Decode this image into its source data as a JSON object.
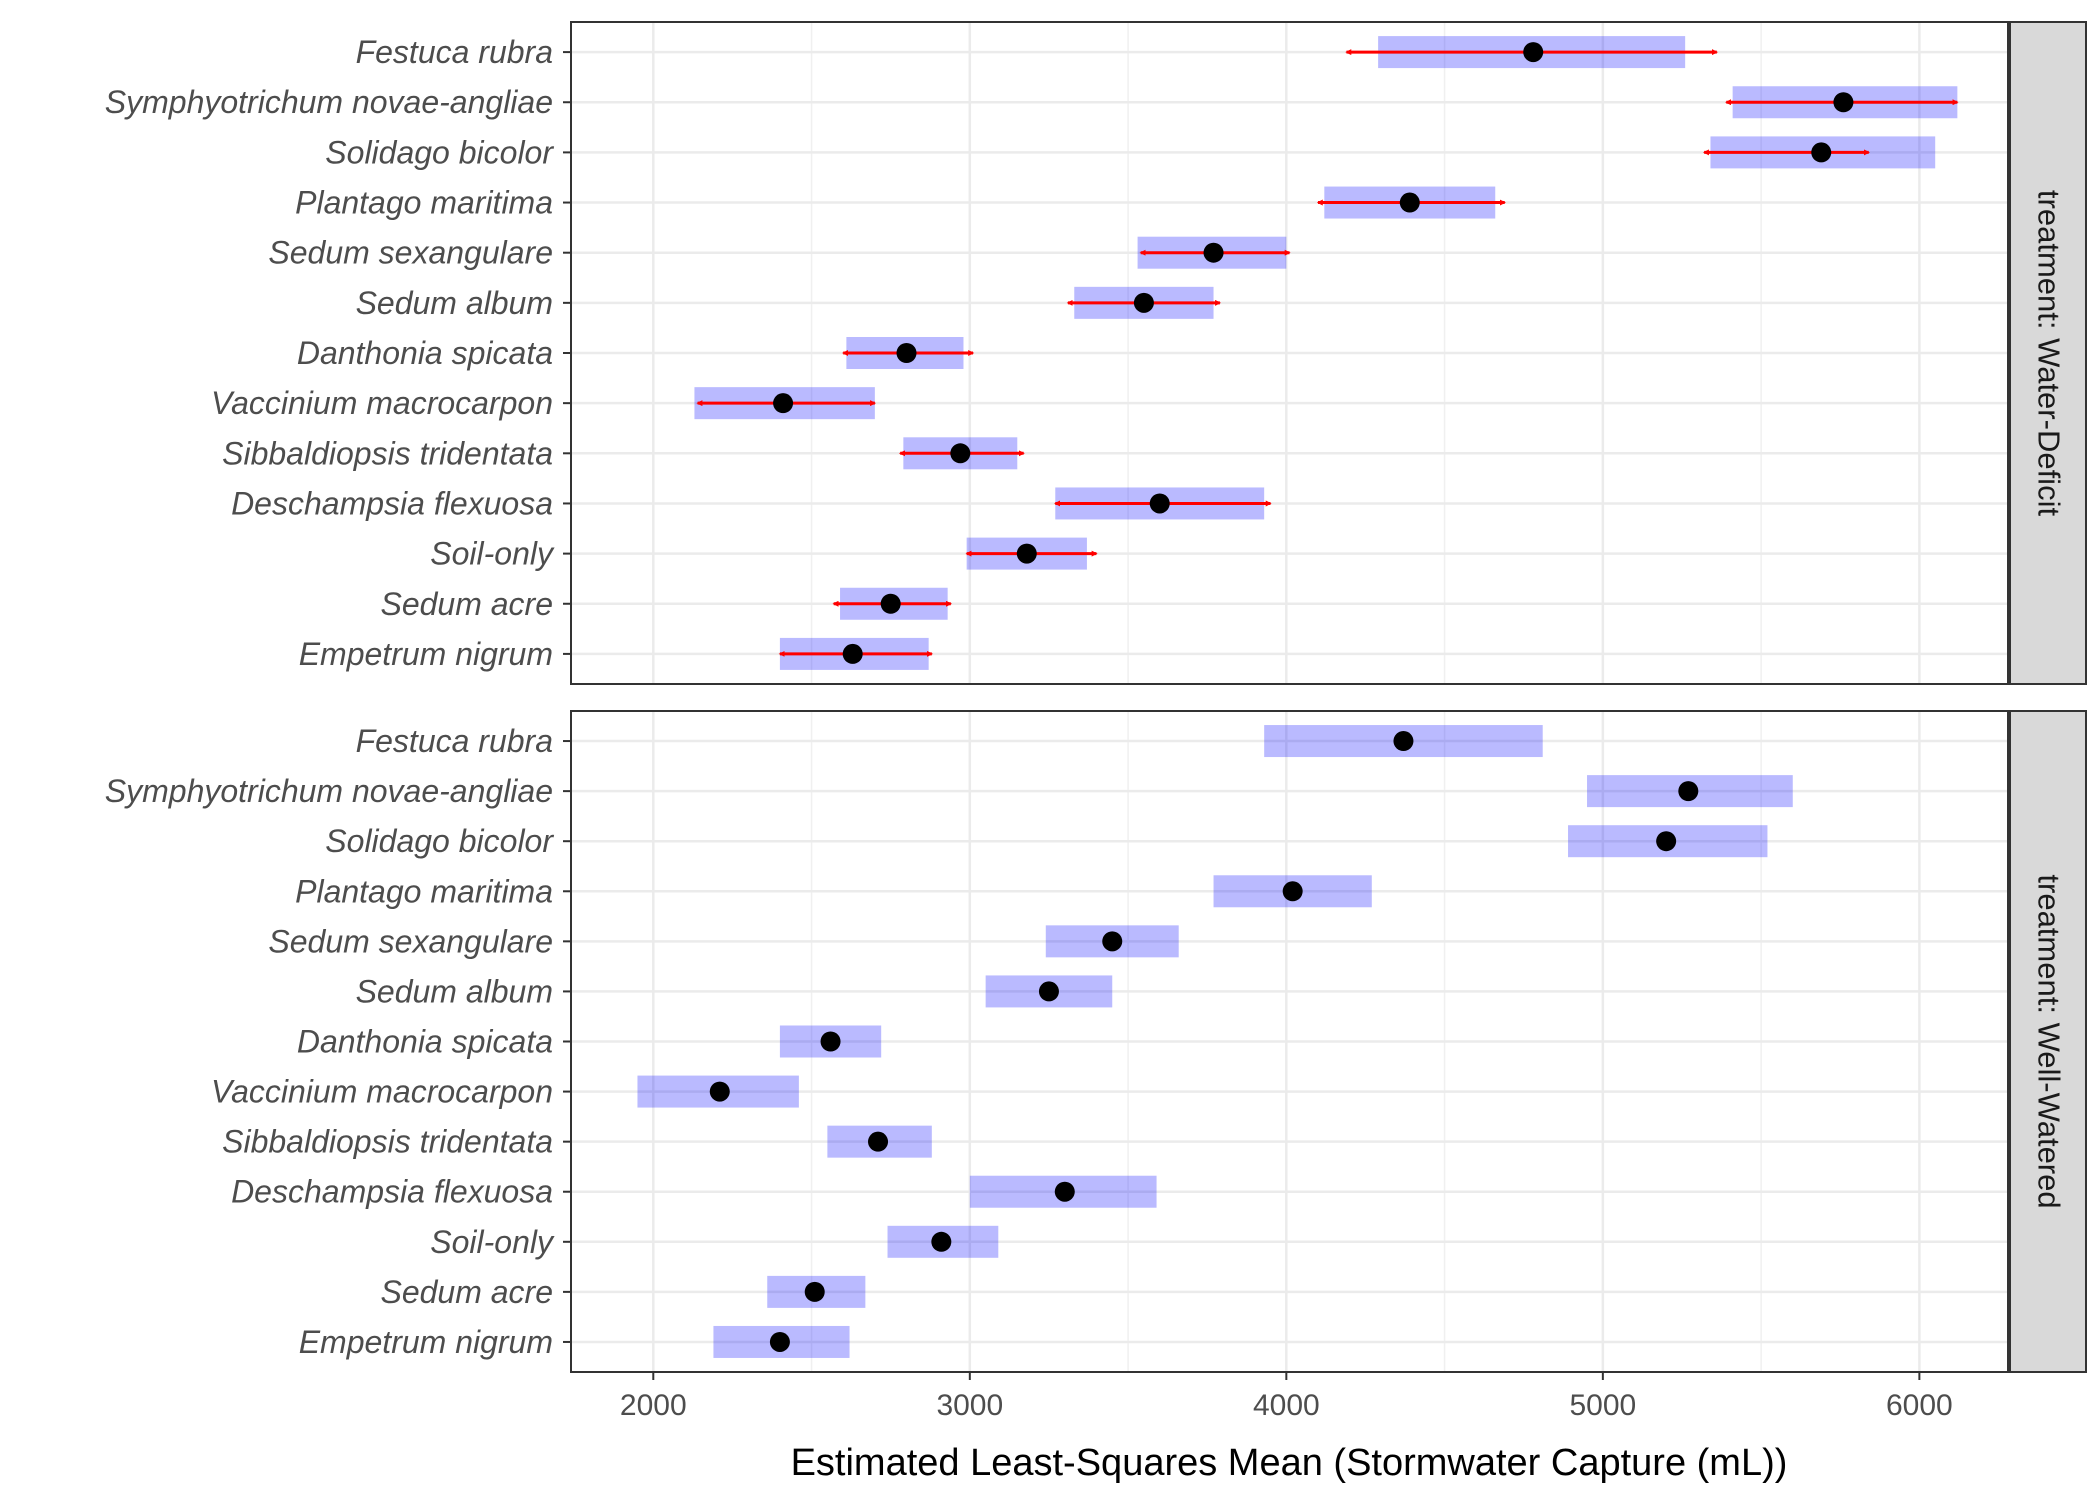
{
  "chart_data": {
    "type": "interval",
    "xlabel": "Estimated Least-Squares Mean (Stormwater Capture (mL))",
    "xlim": [
      1740,
      6280
    ],
    "xticks": [
      2000,
      3000,
      4000,
      5000,
      6000
    ],
    "grid": true,
    "facet_strip_position": "right",
    "categories": [
      "Festuca rubra",
      "Symphyotrichum novae-angliae",
      "Solidago bicolor",
      "Plantago maritima",
      "Sedum sexangulare",
      "Sedum album",
      "Danthonia spicata",
      "Vaccinium macrocarpon",
      "Sibbaldiopsis tridentata",
      "Deschampsia flexuosa",
      "Soil-only",
      "Sedum acre",
      "Empetrum nigrum"
    ],
    "panels": [
      {
        "strip_label": "treatment: Water-Deficit",
        "series": {
          "emmean": [
            4780,
            5760,
            5690,
            4390,
            3770,
            3550,
            2800,
            2410,
            2970,
            3600,
            3180,
            2750,
            2630
          ],
          "ci_lower": [
            4290,
            5410,
            5340,
            4120,
            3530,
            3330,
            2610,
            2130,
            2790,
            3270,
            2990,
            2590,
            2400
          ],
          "ci_upper": [
            5260,
            6120,
            6050,
            4660,
            4000,
            3770,
            2980,
            2700,
            3150,
            3930,
            3370,
            2930,
            2870
          ],
          "comparison_lower": [
            4190,
            5390,
            5320,
            4100,
            3540,
            3310,
            2600,
            2140,
            2780,
            3270,
            2990,
            2570,
            2400
          ],
          "comparison_upper": [
            5360,
            6120,
            5840,
            4690,
            4010,
            3790,
            3010,
            2700,
            3170,
            3950,
            3400,
            2940,
            2880
          ]
        }
      },
      {
        "strip_label": "treatment: Well-Watered",
        "series": {
          "emmean": [
            4370,
            5270,
            5200,
            4020,
            3450,
            3250,
            2560,
            2210,
            2710,
            3300,
            2910,
            2510,
            2400
          ],
          "ci_lower": [
            3930,
            4950,
            4890,
            3770,
            3240,
            3050,
            2400,
            1950,
            2550,
            3000,
            2740,
            2360,
            2190
          ],
          "ci_upper": [
            4810,
            5600,
            5520,
            4270,
            3660,
            3450,
            2720,
            2460,
            2880,
            3590,
            3090,
            2670,
            2620
          ]
        }
      }
    ]
  }
}
